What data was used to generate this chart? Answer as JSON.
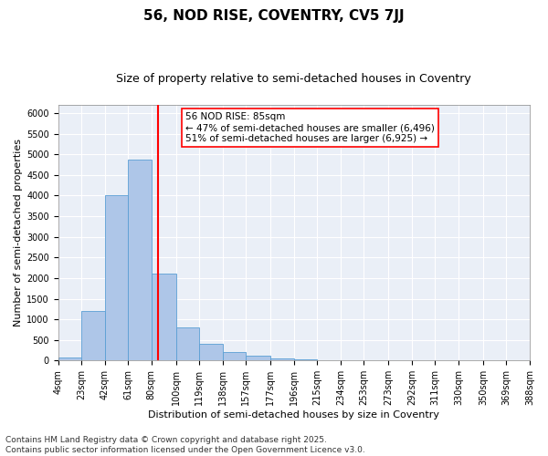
{
  "title": "56, NOD RISE, COVENTRY, CV5 7JJ",
  "subtitle": "Size of property relative to semi-detached houses in Coventry",
  "xlabel": "Distribution of semi-detached houses by size in Coventry",
  "ylabel": "Number of semi-detached properties",
  "footer_line1": "Contains HM Land Registry data © Crown copyright and database right 2025.",
  "footer_line2": "Contains public sector information licensed under the Open Government Licence v3.0.",
  "annotation_title": "56 NOD RISE: 85sqm",
  "annotation_line1": "← 47% of semi-detached houses are smaller (6,496)",
  "annotation_line2": "51% of semi-detached houses are larger (6,925) →",
  "property_size_sqm": 85,
  "bin_edges": [
    4,
    23,
    42,
    61,
    80,
    100,
    119,
    138,
    157,
    177,
    196,
    215,
    234,
    253,
    273,
    292,
    311,
    330,
    350,
    369,
    388
  ],
  "bin_labels": [
    "4sqm",
    "23sqm",
    "42sqm",
    "61sqm",
    "80sqm",
    "100sqm",
    "119sqm",
    "138sqm",
    "157sqm",
    "177sqm",
    "196sqm",
    "215sqm",
    "234sqm",
    "253sqm",
    "273sqm",
    "292sqm",
    "311sqm",
    "330sqm",
    "350sqm",
    "369sqm",
    "388sqm"
  ],
  "bar_values": [
    70,
    1200,
    4010,
    4870,
    2110,
    810,
    400,
    200,
    115,
    60,
    40,
    0,
    0,
    0,
    0,
    0,
    0,
    0,
    0,
    0
  ],
  "bar_color": "#aec6e8",
  "bar_edge_color": "#5a9fd4",
  "vline_color": "red",
  "vline_x": 85,
  "ylim": [
    0,
    6200
  ],
  "yticks": [
    0,
    500,
    1000,
    1500,
    2000,
    2500,
    3000,
    3500,
    4000,
    4500,
    5000,
    5500,
    6000
  ],
  "bg_color": "#eaeff7",
  "grid_color": "white",
  "annotation_box_color": "white",
  "annotation_box_edge": "red",
  "title_fontsize": 11,
  "subtitle_fontsize": 9,
  "axis_label_fontsize": 8,
  "tick_fontsize": 7,
  "annotation_fontsize": 7.5,
  "footer_fontsize": 6.5
}
